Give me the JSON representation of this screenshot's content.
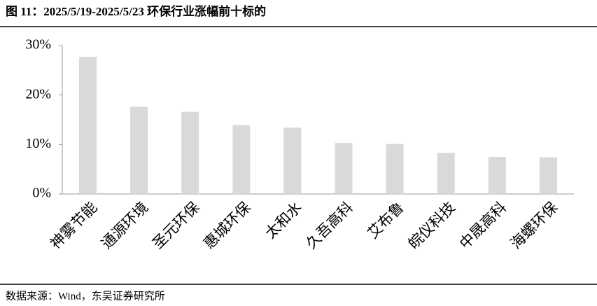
{
  "chart_data": {
    "type": "bar",
    "title": "图 11：2025/5/19-2025/5/23 环保行业涨幅前十标的",
    "source": "数据来源：Wind，东吴证券研究所",
    "categories": [
      "神雾节能",
      "通源环境",
      "圣元环保",
      "惠城环保",
      "太和水",
      "久吾高科",
      "艾布鲁",
      "皖仪科技",
      "中晟高科",
      "海螺环保"
    ],
    "values": [
      27.7,
      17.6,
      16.6,
      13.9,
      13.4,
      10.3,
      10.1,
      8.3,
      7.5,
      7.4
    ],
    "color": "#d9d9d9",
    "ylim": [
      0,
      30
    ],
    "yticks": [
      {
        "value": 0,
        "label": "0%"
      },
      {
        "value": 10,
        "label": "10%"
      },
      {
        "value": 20,
        "label": "20%"
      },
      {
        "value": 30,
        "label": "30%"
      }
    ],
    "grid": false
  }
}
